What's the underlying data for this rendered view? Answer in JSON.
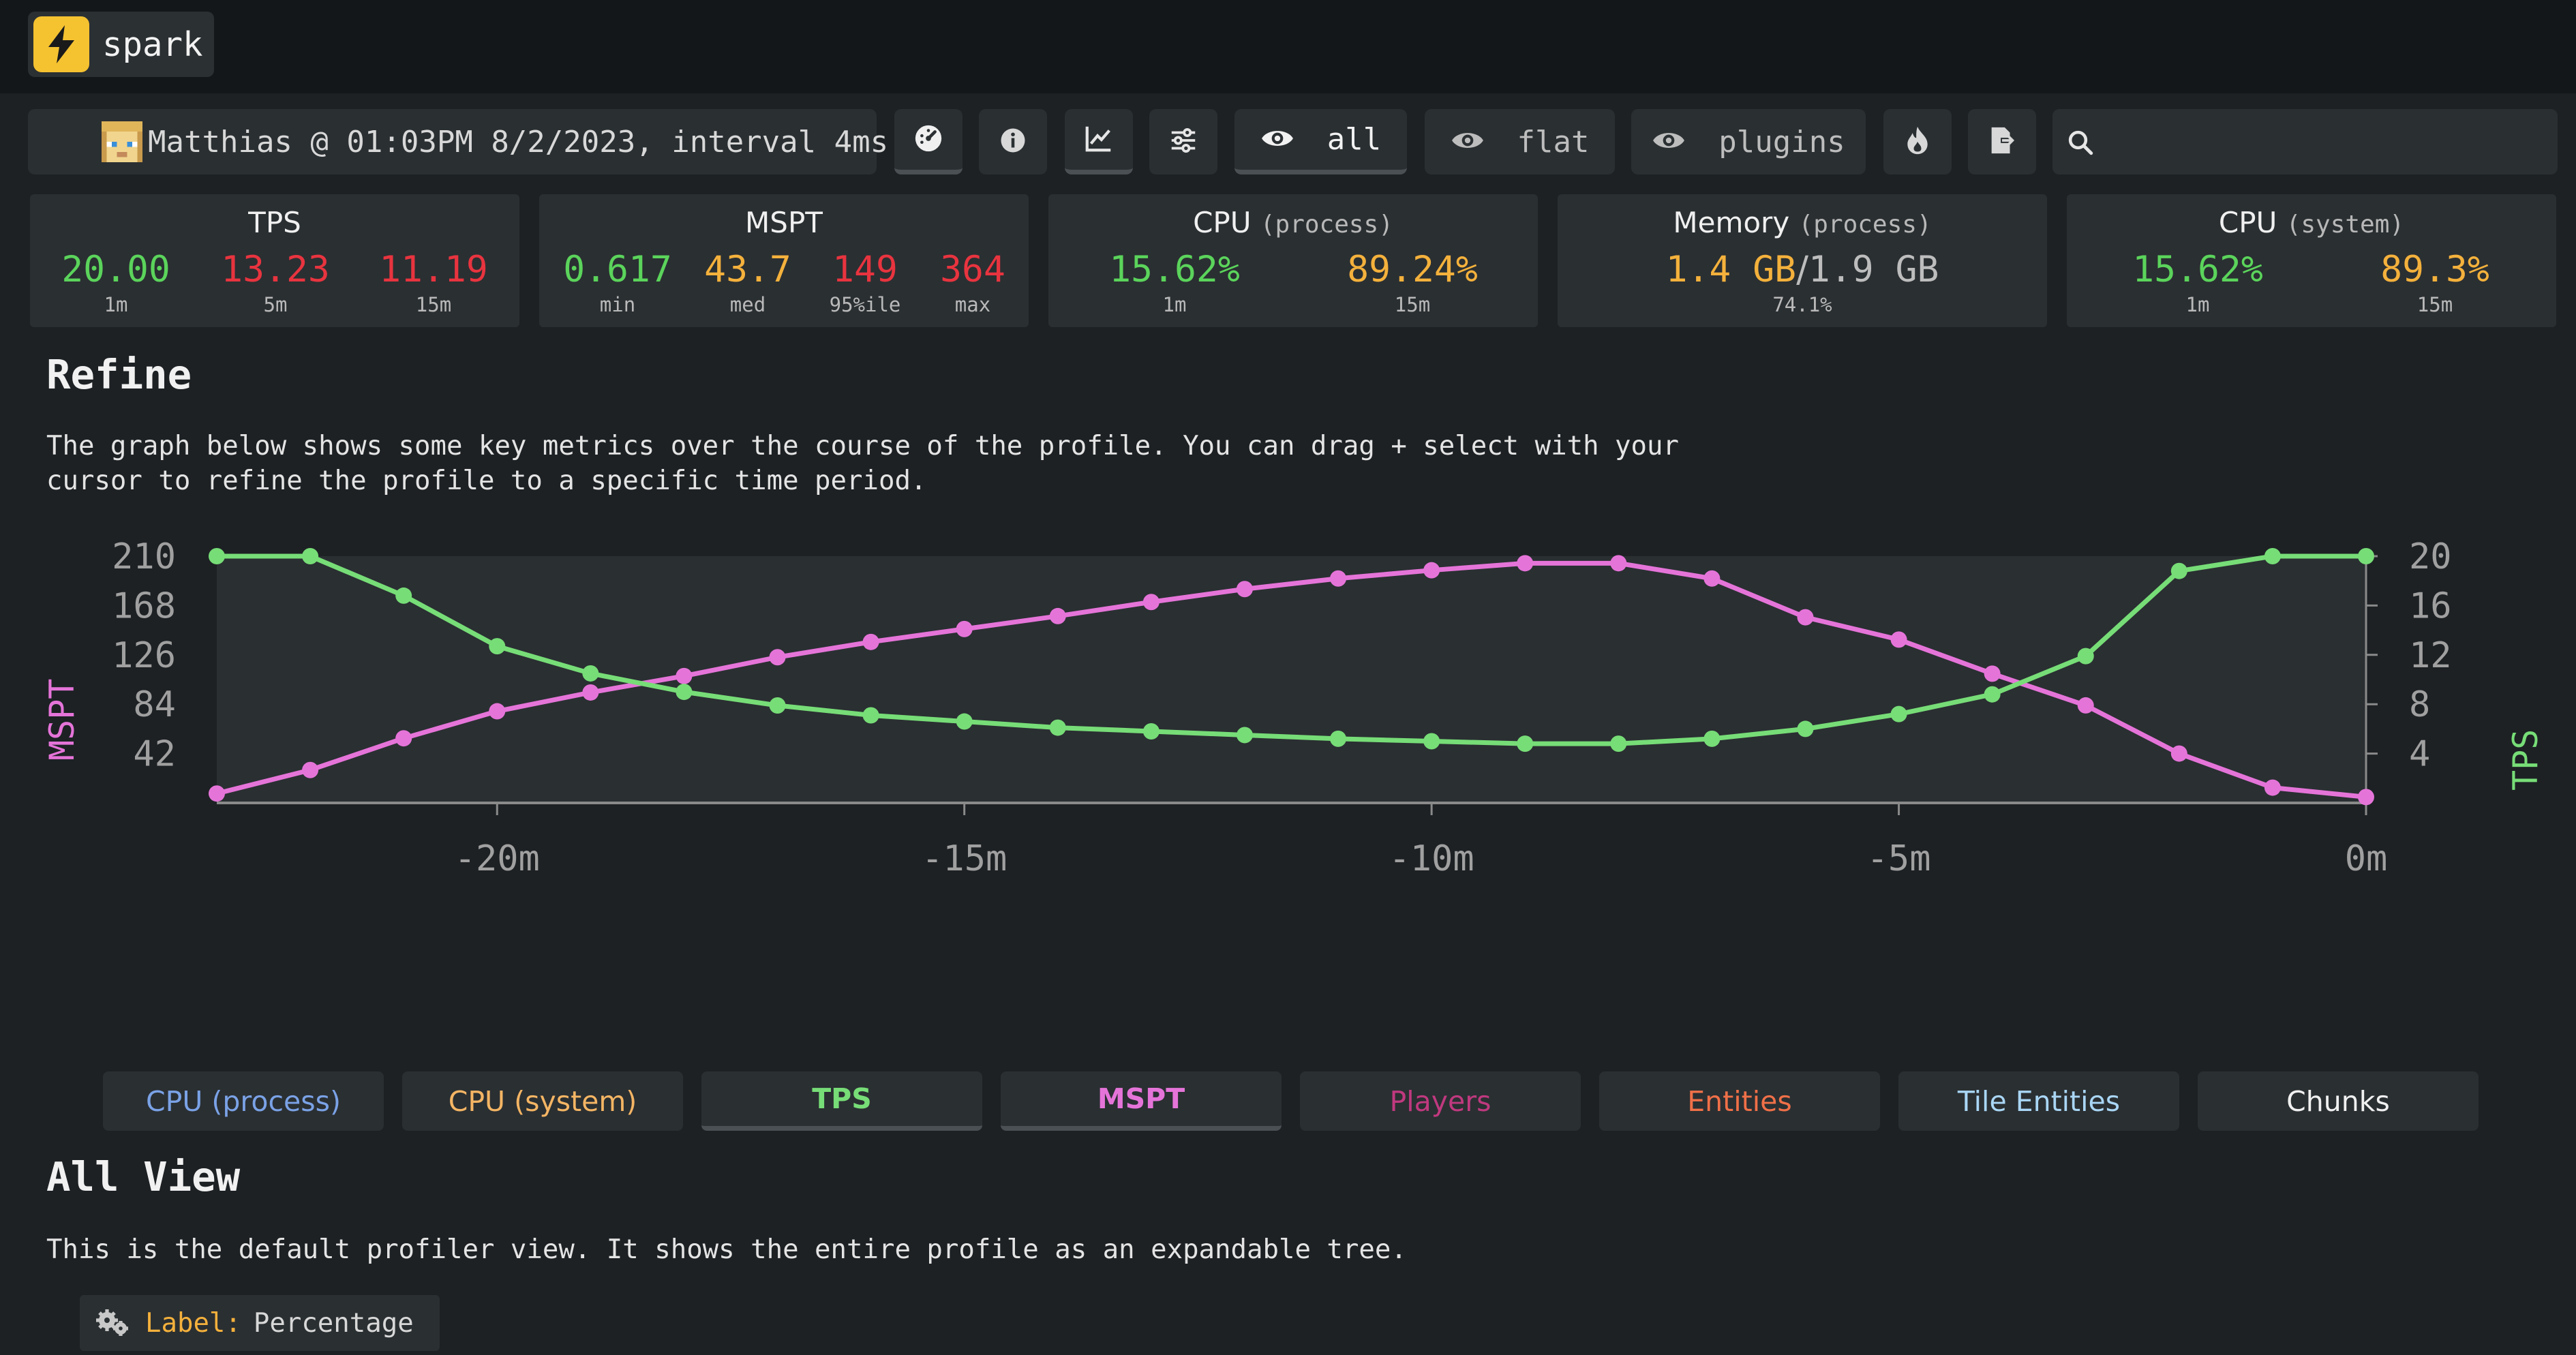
{
  "app": {
    "name": "spark"
  },
  "toolbar": {
    "metadata_text": "Matthias @ 01:03PM 8/2/2023, interval 4ms",
    "view_all_label": "all",
    "view_flat_label": "flat",
    "view_plugins_label": "plugins",
    "icons": [
      "gauge-icon",
      "info-icon",
      "graph-icon",
      "settings-icon",
      "eye-icon",
      "flame-icon",
      "export-icon",
      "search-icon"
    ]
  },
  "widgets": {
    "tps": {
      "title": "TPS",
      "values": [
        {
          "value": "20.00",
          "label": "1m"
        },
        {
          "value": "13.23",
          "label": "5m"
        },
        {
          "value": "11.19",
          "label": "15m"
        }
      ]
    },
    "mspt": {
      "title": "MSPT",
      "values": [
        {
          "value": "0.617",
          "label": "min"
        },
        {
          "value": "43.7",
          "label": "med"
        },
        {
          "value": "149",
          "label": "95%ile"
        },
        {
          "value": "364",
          "label": "max"
        }
      ]
    },
    "cpu_process": {
      "title": "CPU",
      "subtitle": "(process)",
      "values": [
        {
          "value": "15.62%",
          "label": "1m"
        },
        {
          "value": "89.24%",
          "label": "15m"
        }
      ]
    },
    "memory": {
      "title": "Memory",
      "subtitle": "(process)",
      "used": "1.4 GB",
      "separator": "/",
      "total": "1.9 GB",
      "percent": "74.1%"
    },
    "cpu_system": {
      "title": "CPU",
      "subtitle": "(system)",
      "values": [
        {
          "value": "15.62%",
          "label": "1m"
        },
        {
          "value": "89.3%",
          "label": "15m"
        }
      ]
    }
  },
  "refine": {
    "heading": "Refine",
    "description_line1": "The graph below shows some key metrics over the course of the profile. You can drag + select with your",
    "description_line2": "cursor to refine the profile to a specific time period."
  },
  "chart_data": {
    "type": "line",
    "left_axis_label": "MSPT",
    "right_axis_label": "TPS",
    "left_ticks": [
      "210",
      "168",
      "126",
      "84",
      "42"
    ],
    "right_ticks": [
      "20",
      "16",
      "12",
      "8",
      "4"
    ],
    "x_ticks": [
      "-20m",
      "-15m",
      "-10m",
      "-5m",
      "0m"
    ],
    "x": [
      -23,
      -22,
      -21,
      -20,
      -19,
      -18,
      -17,
      -16,
      -15,
      -14,
      -13,
      -12,
      -11,
      -10,
      -9,
      -8,
      -7,
      -6,
      -5,
      -4,
      -3,
      -2,
      -1,
      0
    ],
    "ylim_left": [
      0,
      210
    ],
    "ylim_right": [
      0,
      20
    ],
    "series": [
      {
        "name": "MSPT",
        "axis": "left",
        "color": "#e574d9",
        "values": [
          8,
          28,
          55,
          78,
          94,
          108,
          124,
          137,
          148,
          159,
          171,
          182,
          191,
          198,
          204,
          204,
          191,
          158,
          139,
          110,
          83,
          42,
          13,
          5
        ]
      },
      {
        "name": "TPS",
        "axis": "right",
        "color": "#77dd77",
        "values": [
          20,
          20,
          16.8,
          12.7,
          10.5,
          9.0,
          7.9,
          7.1,
          6.6,
          6.1,
          5.8,
          5.5,
          5.2,
          5.0,
          4.8,
          4.8,
          5.2,
          6.0,
          7.2,
          8.8,
          11.9,
          18.8,
          20,
          20
        ]
      }
    ],
    "grid": false
  },
  "series_buttons": [
    {
      "label": "CPU (process)",
      "color": "#7aa2e6",
      "active": false
    },
    {
      "label": "CPU (system)",
      "color": "#f4b564",
      "active": false
    },
    {
      "label": "TPS",
      "color": "#77dd77",
      "active": true
    },
    {
      "label": "MSPT",
      "color": "#e574d9",
      "active": true
    },
    {
      "label": "Players",
      "color": "#c0397f",
      "active": false
    },
    {
      "label": "Entities",
      "color": "#f07048",
      "active": false
    },
    {
      "label": "Tile Entities",
      "color": "#a9d6f5",
      "active": false
    },
    {
      "label": "Chunks",
      "color": "#f0f0f0",
      "active": false
    }
  ],
  "all_view": {
    "heading": "All View",
    "description": "This is the default profiler view. It shows the entire profile as an expandable tree.",
    "label_key": "Label:",
    "label_value": "Percentage"
  }
}
